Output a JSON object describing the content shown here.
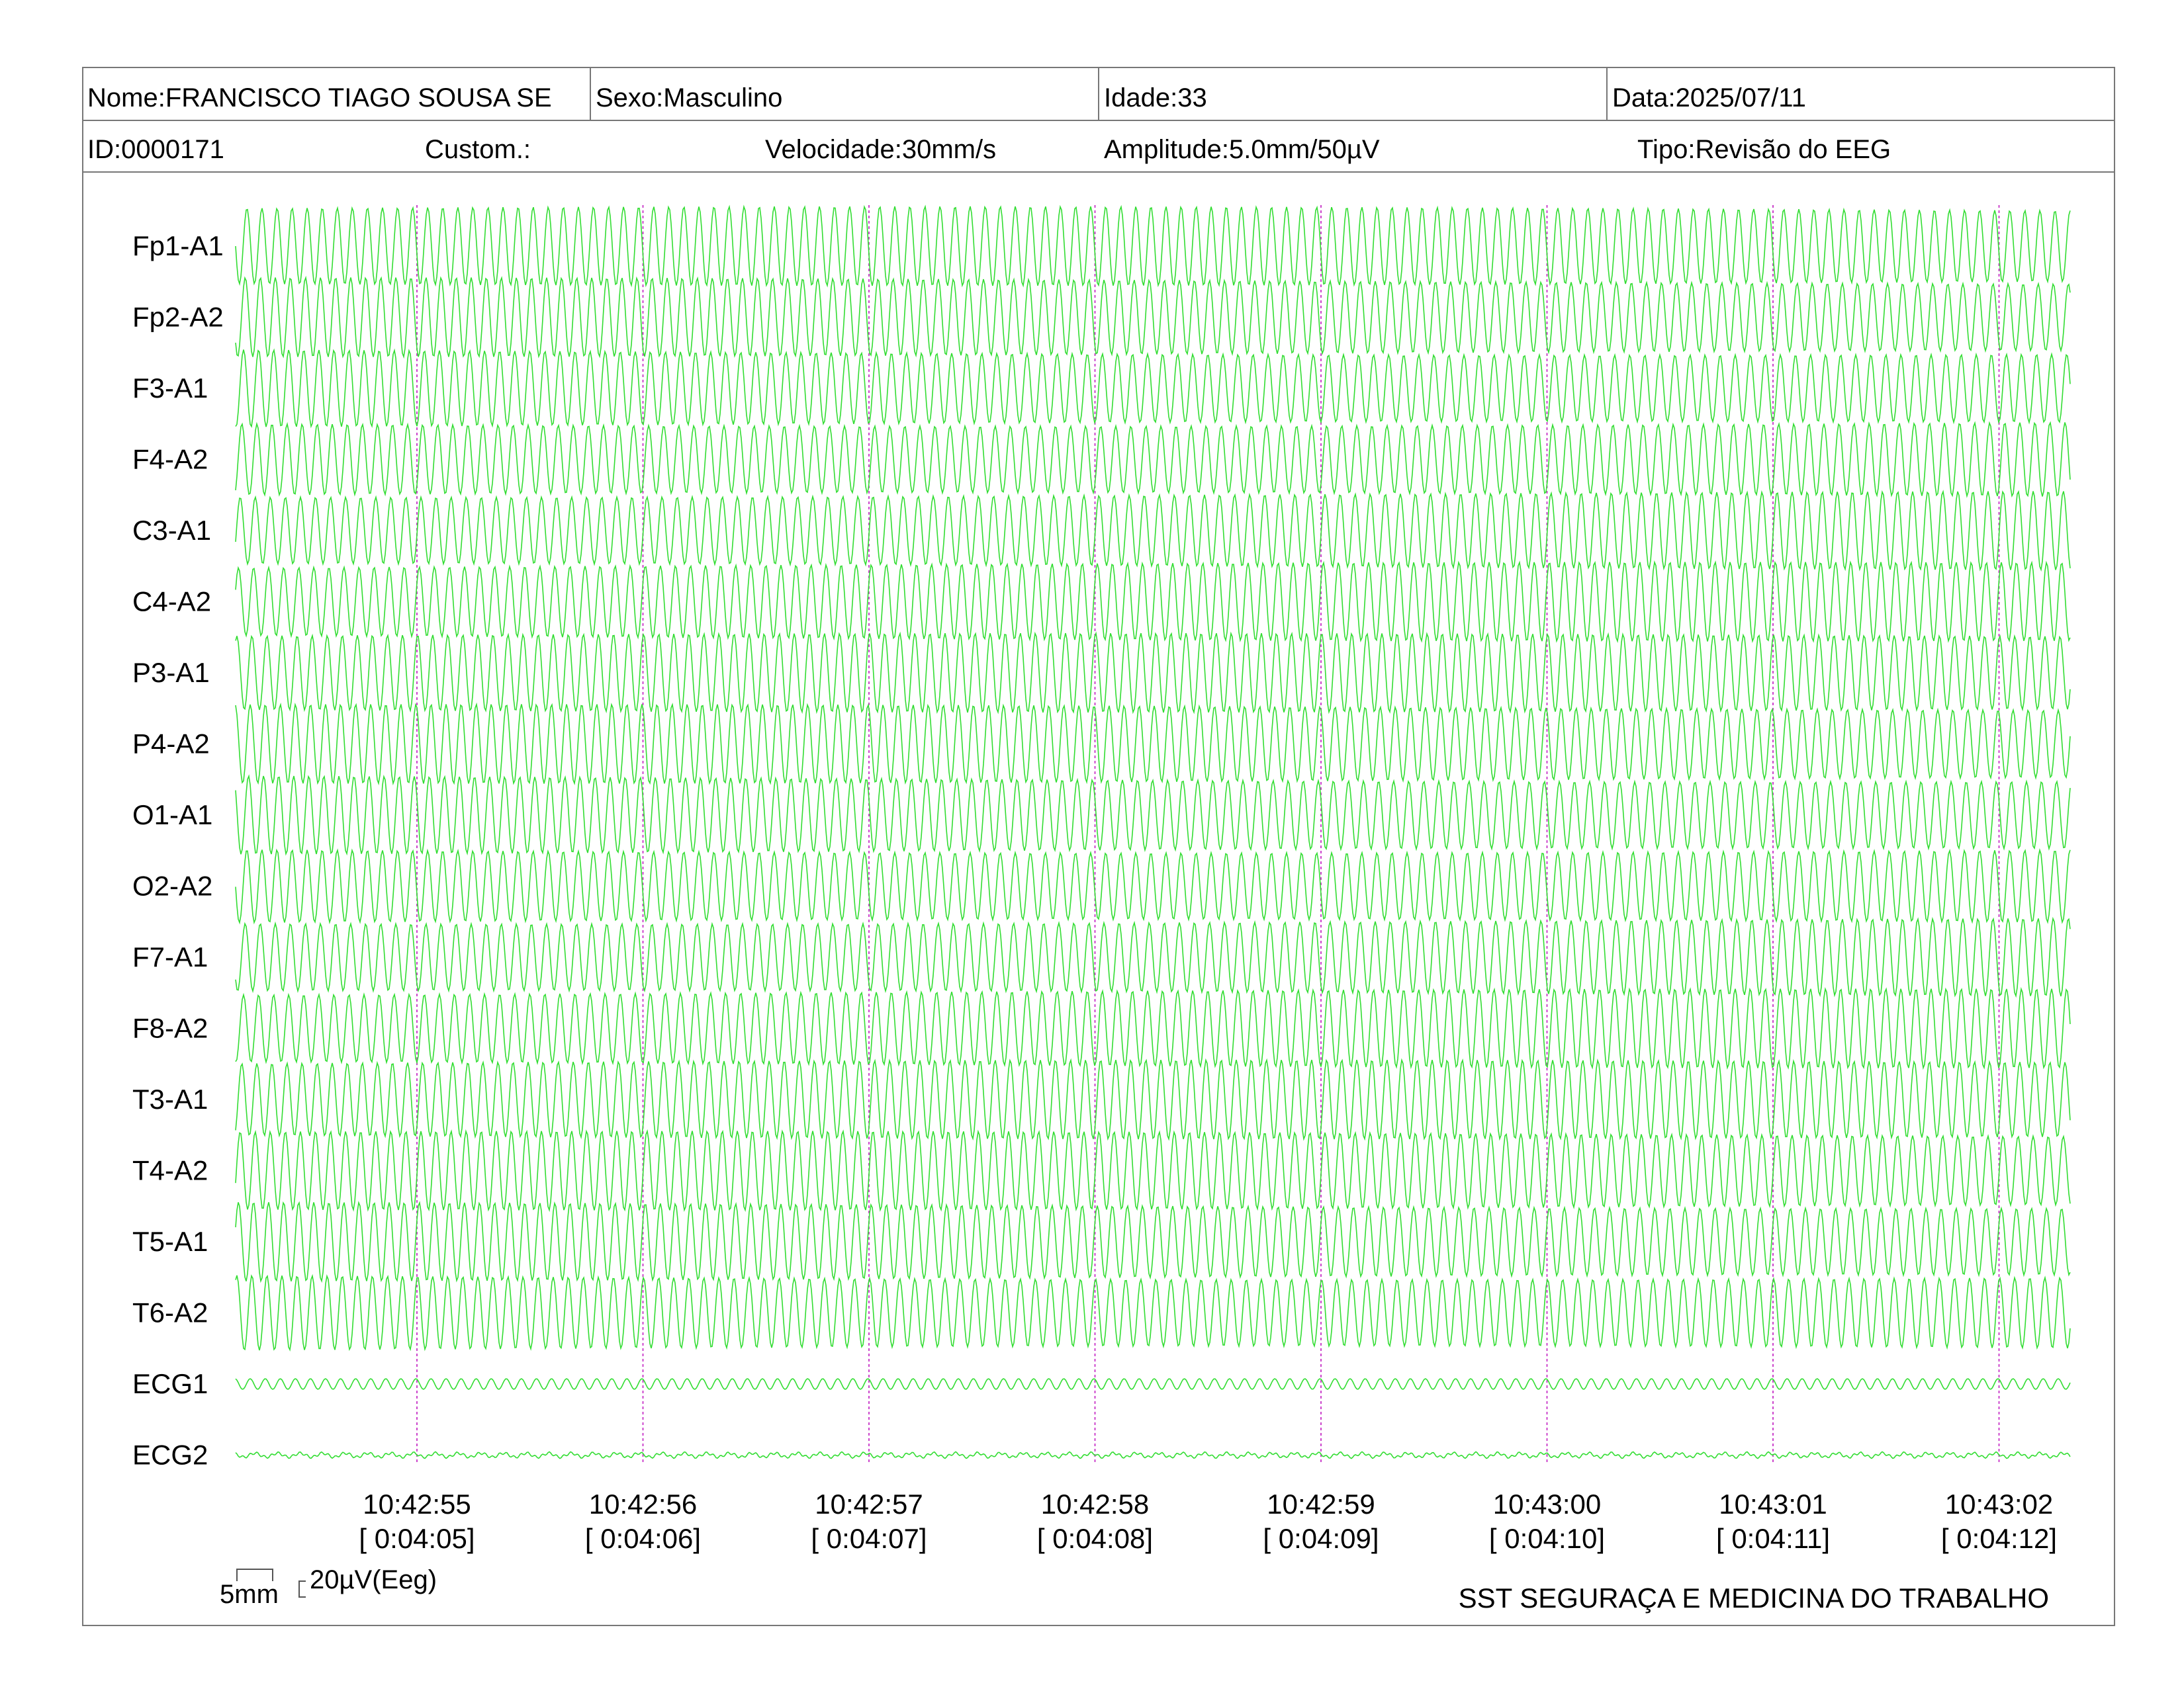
{
  "header": {
    "nome": "Nome:FRANCISCO TIAGO SOUSA SE",
    "sexo": "Sexo:Masculino",
    "idade": "Idade:33",
    "data": "Data:2025/07/11",
    "id": "ID:0000171",
    "custom": "Custom.:",
    "velocidade": "Velocidade:30mm/s",
    "amplitude": "Amplitude:5.0mm/50µV",
    "tipo": "Tipo:Revisão do EEG"
  },
  "chart_data": {
    "type": "line",
    "title": "",
    "channels": [
      "Fp1-A1",
      "Fp2-A2",
      "F3-A1",
      "F4-A2",
      "C3-A1",
      "C4-A2",
      "P3-A1",
      "P4-A2",
      "O1-A1",
      "O2-A2",
      "F7-A1",
      "F8-A2",
      "T3-A1",
      "T4-A2",
      "T5-A1",
      "T6-A2",
      "ECG1",
      "ECG2"
    ],
    "time_labels": [
      "10:42:55",
      "10:42:56",
      "10:42:57",
      "10:42:58",
      "10:42:59",
      "10:43:00",
      "10:43:01",
      "10:43:02"
    ],
    "elapsed_labels": [
      "[ 0:04:05]",
      "[ 0:04:06]",
      "[ 0:04:07]",
      "[ 0:04:08]",
      "[ 0:04:09]",
      "[ 0:04:10]",
      "[ 0:04:11]",
      "[ 0:04:12]"
    ],
    "trace_color": "#33dd33",
    "marker_color": "#cc44cc",
    "eeg_cycles_per_second": 15,
    "ecg1_cycles_per_second": 15,
    "ecg2_cycles_per_second": 10
  },
  "footer": {
    "scale_time": "5mm",
    "scale_amplitude": "20µV(Eeg)",
    "company": "SST SEGURAÇA E MEDICINA DO TRABALHO"
  }
}
